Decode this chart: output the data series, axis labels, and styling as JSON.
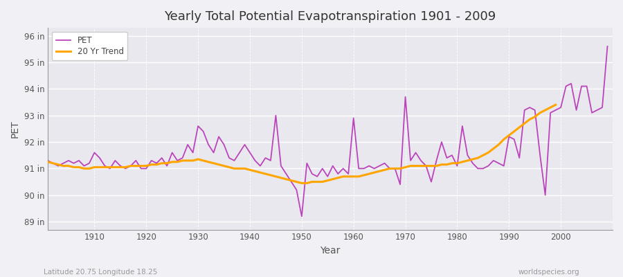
{
  "title": "Yearly Total Potential Evapotranspiration 1901 - 2009",
  "xlabel": "Year",
  "ylabel": "PET",
  "subtitle_left": "Latitude 20.75 Longitude 18.25",
  "subtitle_right": "worldspecies.org",
  "pet_color": "#BB44BB",
  "trend_color": "#FFA500",
  "bg_color": "#F0F0F5",
  "plot_bg": "#E8E8EE",
  "grid_color": "#FFFFFF",
  "ylim": [
    88.7,
    96.3
  ],
  "yticks": [
    89,
    90,
    91,
    92,
    93,
    94,
    95,
    96
  ],
  "ytick_labels": [
    "89 in",
    "90 in",
    "91 in",
    "92 in",
    "93 in",
    "94 in",
    "95 in",
    "96 in"
  ],
  "years": [
    1901,
    1902,
    1903,
    1904,
    1905,
    1906,
    1907,
    1908,
    1909,
    1910,
    1911,
    1912,
    1913,
    1914,
    1915,
    1916,
    1917,
    1918,
    1919,
    1920,
    1921,
    1922,
    1923,
    1924,
    1925,
    1926,
    1927,
    1928,
    1929,
    1930,
    1931,
    1932,
    1933,
    1934,
    1935,
    1936,
    1937,
    1938,
    1939,
    1940,
    1941,
    1942,
    1943,
    1944,
    1945,
    1946,
    1947,
    1948,
    1949,
    1950,
    1951,
    1952,
    1953,
    1954,
    1955,
    1956,
    1957,
    1958,
    1959,
    1960,
    1961,
    1962,
    1963,
    1964,
    1965,
    1966,
    1967,
    1968,
    1969,
    1970,
    1971,
    1972,
    1973,
    1974,
    1975,
    1976,
    1977,
    1978,
    1979,
    1980,
    1981,
    1982,
    1983,
    1984,
    1985,
    1986,
    1987,
    1988,
    1989,
    1990,
    1991,
    1992,
    1993,
    1994,
    1995,
    1996,
    1997,
    1998,
    1999,
    2000,
    2001,
    2002,
    2003,
    2004,
    2005,
    2006,
    2007,
    2008,
    2009
  ],
  "pet_values": [
    91.3,
    91.2,
    91.1,
    91.2,
    91.3,
    91.2,
    91.3,
    91.1,
    91.2,
    91.6,
    91.4,
    91.1,
    91.0,
    91.3,
    91.1,
    91.0,
    91.1,
    91.3,
    91.0,
    91.0,
    91.3,
    91.2,
    91.4,
    91.1,
    91.6,
    91.3,
    91.4,
    91.9,
    91.6,
    92.6,
    92.4,
    91.9,
    91.6,
    92.2,
    91.9,
    91.4,
    91.3,
    91.6,
    91.9,
    91.6,
    91.3,
    91.1,
    91.4,
    91.3,
    93.0,
    91.1,
    90.8,
    90.5,
    90.2,
    89.2,
    91.2,
    90.8,
    90.7,
    91.0,
    90.7,
    91.1,
    90.8,
    91.0,
    90.8,
    92.9,
    91.0,
    91.0,
    91.1,
    91.0,
    91.1,
    91.2,
    91.0,
    91.0,
    90.4,
    93.7,
    91.3,
    91.6,
    91.3,
    91.1,
    90.5,
    91.3,
    92.0,
    91.4,
    91.5,
    91.1,
    92.6,
    91.5,
    91.2,
    91.0,
    91.0,
    91.1,
    91.3,
    91.2,
    91.1,
    92.2,
    92.1,
    91.4,
    93.2,
    93.3,
    93.2,
    91.5,
    90.0,
    93.1,
    93.2,
    93.3,
    94.1,
    94.2,
    93.2,
    94.1,
    94.1,
    93.1,
    93.2,
    93.3,
    95.6
  ],
  "trend_values": [
    91.25,
    91.2,
    91.15,
    91.1,
    91.1,
    91.05,
    91.05,
    91.0,
    91.0,
    91.05,
    91.05,
    91.05,
    91.05,
    91.05,
    91.05,
    91.05,
    91.1,
    91.1,
    91.1,
    91.1,
    91.15,
    91.15,
    91.2,
    91.2,
    91.25,
    91.25,
    91.3,
    91.3,
    91.3,
    91.35,
    91.3,
    91.25,
    91.2,
    91.15,
    91.1,
    91.05,
    91.0,
    91.0,
    91.0,
    90.95,
    90.9,
    90.85,
    90.8,
    90.75,
    90.7,
    90.65,
    90.6,
    90.55,
    90.5,
    90.45,
    90.45,
    90.5,
    90.5,
    90.5,
    90.55,
    90.6,
    90.65,
    90.7,
    90.7,
    90.7,
    90.7,
    90.75,
    90.8,
    90.85,
    90.9,
    90.95,
    91.0,
    91.0,
    91.0,
    91.05,
    91.1,
    91.1,
    91.1,
    91.1,
    91.1,
    91.1,
    91.15,
    91.15,
    91.2,
    91.2,
    91.25,
    91.3,
    91.35,
    91.4,
    91.5,
    91.6,
    91.75,
    91.9,
    92.1,
    92.25,
    92.4,
    92.55,
    92.7,
    92.85,
    92.95,
    93.1,
    93.2,
    93.3,
    93.4,
    null,
    null,
    null,
    null,
    null,
    null,
    null,
    null,
    null,
    null
  ]
}
